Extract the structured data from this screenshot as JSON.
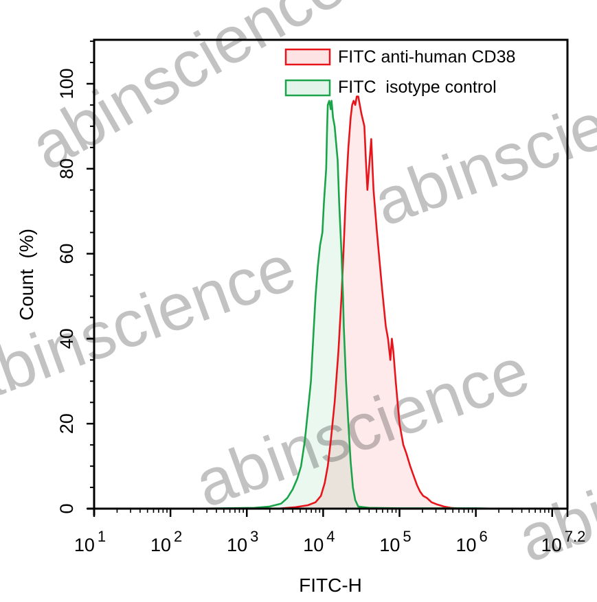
{
  "chart_data": {
    "type": "area",
    "title": "",
    "xlabel": "FITC-H",
    "ylabel": "Count  (%)",
    "x_scale": "log10",
    "xlim_log10": [
      1,
      7.2
    ],
    "ylim": [
      0,
      110
    ],
    "x_ticks": [
      {
        "base": "10",
        "exp": "1",
        "log": 1
      },
      {
        "base": "10",
        "exp": "2",
        "log": 2
      },
      {
        "base": "10",
        "exp": "3",
        "log": 3
      },
      {
        "base": "10",
        "exp": "4",
        "log": 4
      },
      {
        "base": "10",
        "exp": "5",
        "log": 5
      },
      {
        "base": "10",
        "exp": "6",
        "log": 6
      },
      {
        "base": "10",
        "exp": "7.2",
        "log": 7.2
      }
    ],
    "y_ticks": [
      0,
      20,
      40,
      60,
      80,
      100
    ],
    "grid": false,
    "legend_position": "top-right",
    "series": [
      {
        "name": "FITC anti-human CD38",
        "line_color": "#e8141b",
        "fill_color": "#fde3e4",
        "points_log10x_y": [
          [
            3.4,
            0
          ],
          [
            3.62,
            0.3
          ],
          [
            3.8,
            0.8
          ],
          [
            3.9,
            1.5
          ],
          [
            3.97,
            3
          ],
          [
            4.02,
            6
          ],
          [
            4.06,
            10
          ],
          [
            4.1,
            16
          ],
          [
            4.15,
            25
          ],
          [
            4.2,
            37
          ],
          [
            4.24,
            50
          ],
          [
            4.27,
            62
          ],
          [
            4.3,
            75
          ],
          [
            4.33,
            85
          ],
          [
            4.36,
            92
          ],
          [
            4.38,
            95
          ],
          [
            4.4,
            96
          ],
          [
            4.42,
            95
          ],
          [
            4.44,
            97
          ],
          [
            4.46,
            97
          ],
          [
            4.5,
            93
          ],
          [
            4.54,
            90
          ],
          [
            4.56,
            82
          ],
          [
            4.58,
            75
          ],
          [
            4.6,
            80
          ],
          [
            4.63,
            87
          ],
          [
            4.66,
            75
          ],
          [
            4.7,
            66
          ],
          [
            4.73,
            60
          ],
          [
            4.77,
            52
          ],
          [
            4.82,
            43
          ],
          [
            4.85,
            40
          ],
          [
            4.88,
            35
          ],
          [
            4.9,
            40
          ],
          [
            4.92,
            37
          ],
          [
            4.95,
            30
          ],
          [
            5.0,
            20
          ],
          [
            5.05,
            15
          ],
          [
            5.09,
            13
          ],
          [
            5.14,
            10
          ],
          [
            5.18,
            8
          ],
          [
            5.23,
            5.5
          ],
          [
            5.27,
            4
          ],
          [
            5.31,
            3
          ],
          [
            5.36,
            2.5
          ],
          [
            5.42,
            1.5
          ],
          [
            5.49,
            1
          ],
          [
            5.58,
            0.5
          ],
          [
            5.67,
            0.2
          ],
          [
            5.8,
            0
          ]
        ]
      },
      {
        "name": "FITC  isotype control",
        "line_color": "#1ba34a",
        "fill_color": "#e3f5ea",
        "points_log10x_y": [
          [
            2.3,
            0
          ],
          [
            3.1,
            0.2
          ],
          [
            3.3,
            0.5
          ],
          [
            3.45,
            1.2
          ],
          [
            3.53,
            2.5
          ],
          [
            3.6,
            4.5
          ],
          [
            3.66,
            7
          ],
          [
            3.71,
            10
          ],
          [
            3.76,
            16
          ],
          [
            3.8,
            23
          ],
          [
            3.84,
            30
          ],
          [
            3.87,
            40
          ],
          [
            3.9,
            50
          ],
          [
            3.93,
            57
          ],
          [
            3.96,
            62
          ],
          [
            3.99,
            65
          ],
          [
            4.01,
            72
          ],
          [
            4.04,
            80
          ],
          [
            4.05,
            88
          ],
          [
            4.06,
            95
          ],
          [
            4.08,
            96
          ],
          [
            4.1,
            94
          ],
          [
            4.11,
            96
          ],
          [
            4.13,
            92
          ],
          [
            4.15,
            90
          ],
          [
            4.17,
            86
          ],
          [
            4.19,
            82
          ],
          [
            4.21,
            72
          ],
          [
            4.24,
            60
          ],
          [
            4.26,
            50
          ],
          [
            4.27,
            43
          ],
          [
            4.3,
            30
          ],
          [
            4.33,
            20
          ],
          [
            4.36,
            11
          ],
          [
            4.39,
            5
          ],
          [
            4.42,
            2
          ],
          [
            4.46,
            0.5
          ],
          [
            4.6,
            0.2
          ],
          [
            5.0,
            0.1
          ],
          [
            6.0,
            0.1
          ],
          [
            6.3,
            0
          ]
        ]
      }
    ]
  },
  "watermark": {
    "text": "abinscience",
    "color": "#9a9a9a"
  }
}
